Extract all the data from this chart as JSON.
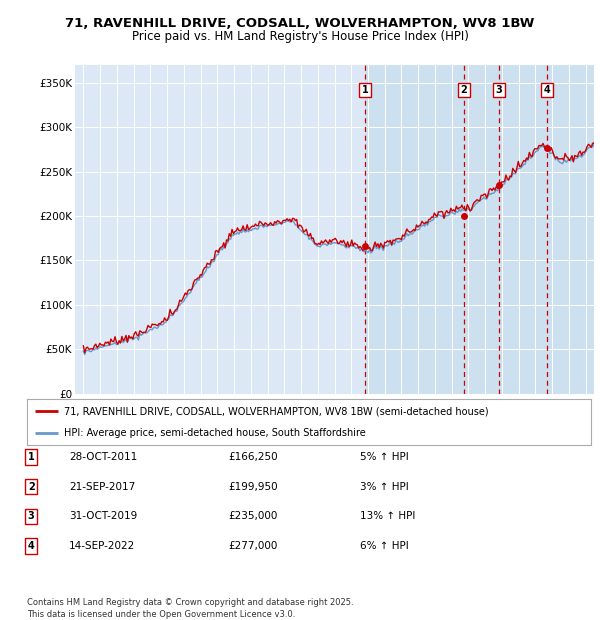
{
  "title_line1": "71, RAVENHILL DRIVE, CODSALL, WOLVERHAMPTON, WV8 1BW",
  "title_line2": "Price paid vs. HM Land Registry's House Price Index (HPI)",
  "background_color": "#ddeeff",
  "plot_bg_color": "#dce8f5",
  "plot_bg_highlight": "#cce0f0",
  "legend_line1": "71, RAVENHILL DRIVE, CODSALL, WOLVERHAMPTON, WV8 1BW (semi-detached house)",
  "legend_line2": "HPI: Average price, semi-detached house, South Staffordshire",
  "footer": "Contains HM Land Registry data © Crown copyright and database right 2025.\nThis data is licensed under the Open Government Licence v3.0.",
  "transactions": [
    {
      "num": 1,
      "date": "28-OCT-2011",
      "price": "£166,250",
      "change": "5% ↑ HPI",
      "year": 2011.83
    },
    {
      "num": 2,
      "date": "21-SEP-2017",
      "price": "£199,950",
      "change": "3% ↑ HPI",
      "year": 2017.72
    },
    {
      "num": 3,
      "date": "31-OCT-2019",
      "price": "£235,000",
      "change": "13% ↑ HPI",
      "year": 2019.83
    },
    {
      "num": 4,
      "date": "14-SEP-2022",
      "price": "£277,000",
      "change": "6% ↑ HPI",
      "year": 2022.71
    }
  ],
  "trans_prices": [
    166250,
    199950,
    235000,
    277000
  ],
  "hpi_color": "#6699cc",
  "price_color": "#cc0000",
  "dashed_line_color": "#cc0000",
  "ylim": [
    0,
    370000
  ],
  "yticks": [
    0,
    50000,
    100000,
    150000,
    200000,
    250000,
    300000,
    350000
  ],
  "ytick_labels": [
    "£0",
    "£50K",
    "£100K",
    "£150K",
    "£200K",
    "£250K",
    "£300K",
    "£350K"
  ],
  "xlim_start": 1994.5,
  "xlim_end": 2025.5
}
